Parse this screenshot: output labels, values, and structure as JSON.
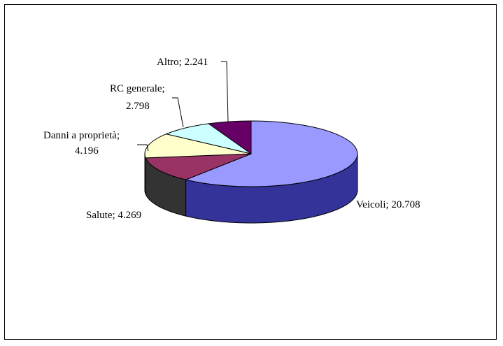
{
  "chart_data": {
    "type": "pie",
    "style": "3d",
    "title": "",
    "slices": [
      {
        "label": "Veicoli",
        "value": 20708,
        "value_text": "20.708",
        "color": "#9999ff",
        "side": "#333399"
      },
      {
        "label": "Salute",
        "value": 4269,
        "value_text": "4.269",
        "color": "#993366",
        "side": "#333333"
      },
      {
        "label": "Danni a proprietà",
        "value": 4196,
        "value_text": "4.196",
        "color": "#ffffcc",
        "side": "#cccc99"
      },
      {
        "label": "RC generale",
        "value": 2798,
        "value_text": "2.798",
        "color": "#ccffff",
        "side": "#99cccc"
      },
      {
        "label": "Altro",
        "value": 2241,
        "value_text": "2.241",
        "color": "#660066",
        "side": "#330033"
      }
    ],
    "label_format": "{label}; {value}",
    "legend": "none"
  }
}
